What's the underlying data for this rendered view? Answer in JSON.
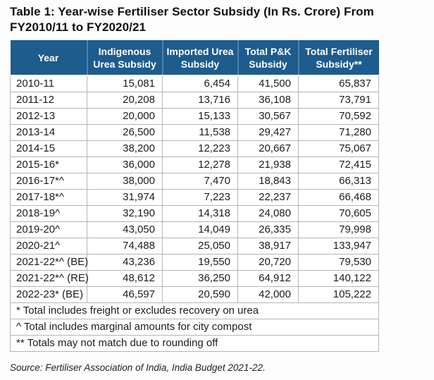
{
  "title": "Table 1: Year-wise Fertiliser Sector Subsidy (In Rs. Crore) From FY2010/11 to FY2020/21",
  "table": {
    "columns": [
      "Year",
      "Indigenous Urea Subsidy",
      "Imported Urea Subsidy",
      "Total P&K Subsidy",
      "Total Fertiliser Subsidy**"
    ],
    "rows": [
      {
        "year": "2010-11",
        "values": [
          "15,081",
          "6,454",
          "41,500",
          "65,837"
        ]
      },
      {
        "year": "2011-12",
        "values": [
          "20,208",
          "13,716",
          "36,108",
          "73,791"
        ]
      },
      {
        "year": "2012-13",
        "values": [
          "20,000",
          "15,133",
          "30,567",
          "70,592"
        ]
      },
      {
        "year": "2013-14",
        "values": [
          "26,500",
          "11,538",
          "29,427",
          "71,280"
        ]
      },
      {
        "year": "2014-15",
        "values": [
          "38,200",
          "12,223",
          "20,667",
          "75,067"
        ]
      },
      {
        "year": "2015-16*",
        "values": [
          "36,000",
          "12,278",
          "21,938",
          "72,415"
        ]
      },
      {
        "year": "2016-17*^",
        "values": [
          "38,000",
          "7,470",
          "18,843",
          "66,313"
        ]
      },
      {
        "year": "2017-18*^",
        "values": [
          "31,974",
          "7,223",
          "22,237",
          "66,468"
        ]
      },
      {
        "year": "2018-19^",
        "values": [
          "32,190",
          "14,318",
          "24,080",
          "70,605"
        ]
      },
      {
        "year": "2019-20^",
        "values": [
          "43,050",
          "14,049",
          "26,335",
          "79,998"
        ]
      },
      {
        "year": "2020-21^",
        "values": [
          "74,488",
          "25,050",
          "38,917",
          "133,947"
        ]
      },
      {
        "year": "2021-22*^ (BE)",
        "values": [
          "43,236",
          "19,550",
          "20,720",
          "79,530"
        ]
      },
      {
        "year": "2021-22*^ (RE)",
        "values": [
          "48,612",
          "36,250",
          "64,912",
          "140,122"
        ]
      },
      {
        "year": "2022-23* (BE)",
        "values": [
          "46,597",
          "20,590",
          "42,000",
          "105,222"
        ]
      }
    ],
    "footnotes": [
      "* Total includes freight or excludes recovery on urea",
      "^ Total includes marginal amounts for city compost",
      "** Totals may not match due to rounding off"
    ],
    "source": "Source: Fertiliser Association of India, India Budget 2021-22."
  },
  "colors": {
    "header_bg": "#1d5c8d",
    "header_divider": "#4f83ab",
    "grid_border": "#b5b5b5",
    "text": "#1c1c1c"
  }
}
